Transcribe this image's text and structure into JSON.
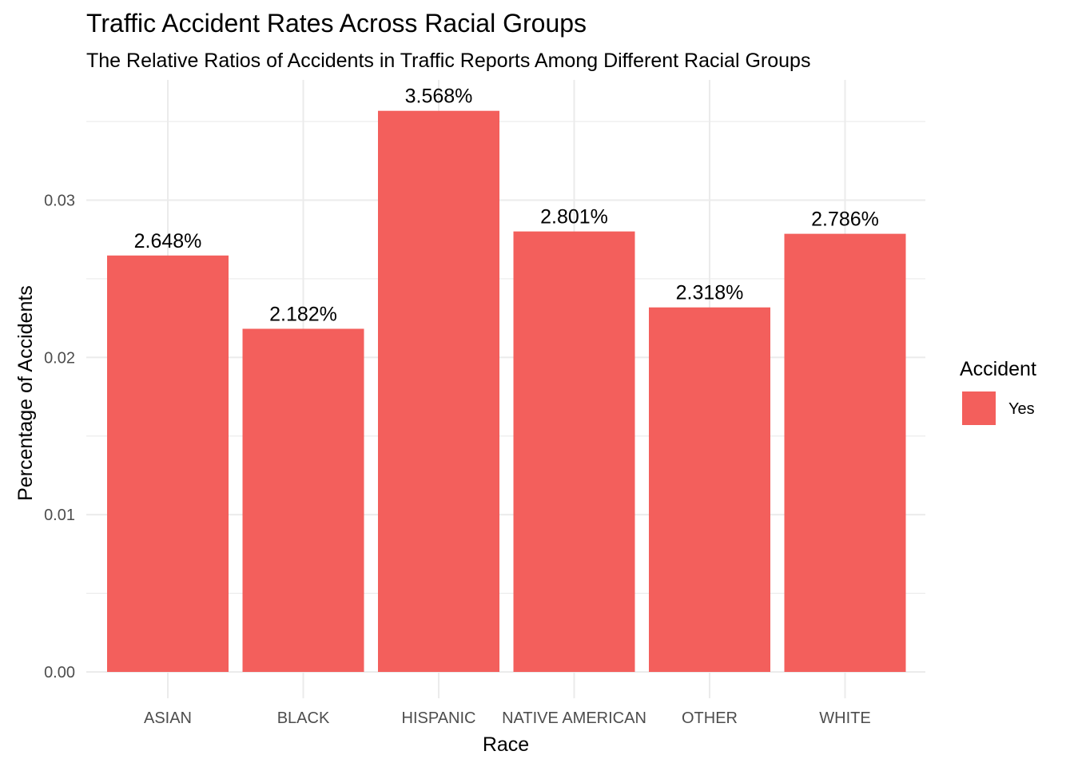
{
  "chart_data": {
    "type": "bar",
    "title": "Traffic Accident Rates Across Racial Groups",
    "subtitle": "The Relative Ratios of Accidents in Traffic Reports Among Different Racial Groups",
    "xlabel": "Race",
    "ylabel": "Percentage of Accidents",
    "categories": [
      "ASIAN",
      "BLACK",
      "HISPANIC",
      "NATIVE AMERICAN",
      "OTHER",
      "WHITE"
    ],
    "series": [
      {
        "name": "Yes",
        "values": [
          0.02648,
          0.02182,
          0.03568,
          0.02801,
          0.02318,
          0.02786
        ],
        "labels": [
          "2.648%",
          "2.182%",
          "3.568%",
          "2.801%",
          "2.318%",
          "2.786%"
        ],
        "color": "#F35F5C"
      }
    ],
    "ylim": [
      0,
      0.0375
    ],
    "yticks": [
      0.0,
      0.01,
      0.02,
      0.03
    ],
    "ytick_labels": [
      "0.00",
      "0.01",
      "0.02",
      "0.03"
    ],
    "grid": true,
    "legend": {
      "title": "Accident",
      "placement": "right"
    }
  }
}
